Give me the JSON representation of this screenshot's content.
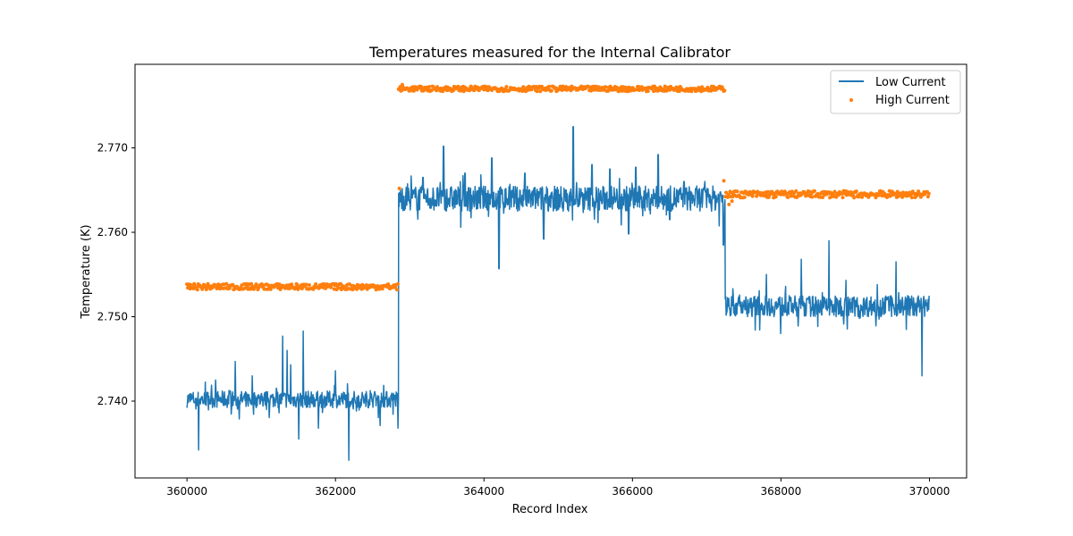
{
  "chart_data": {
    "type": "line",
    "title": "Temperatures measured for the Internal Calibrator",
    "xlabel": "Record Index",
    "ylabel": "Temperature (K)",
    "xlim": [
      359300,
      370500
    ],
    "ylim": [
      2.7309,
      2.7799
    ],
    "x_ticks": [
      360000,
      362000,
      364000,
      366000,
      368000,
      370000
    ],
    "x_tick_labels": [
      "360000",
      "362000",
      "364000",
      "366000",
      "368000",
      "370000"
    ],
    "y_ticks": [
      2.74,
      2.75,
      2.76,
      2.77
    ],
    "y_tick_labels": [
      "2.740",
      "2.750",
      "2.760",
      "2.770"
    ],
    "legend_position": "top-right",
    "grid": false,
    "series": [
      {
        "name": "Low Current",
        "style": "line",
        "color": "#1f77b4",
        "segments": [
          {
            "x_start": 360000,
            "x_end": 362850,
            "level": 2.7405,
            "band": [
              2.7392,
              2.7412
            ]
          },
          {
            "x_start": 362850,
            "x_end": 367250,
            "level": 2.7643,
            "band": [
              2.7625,
              2.7655
            ]
          },
          {
            "x_start": 367250,
            "x_end": 370000,
            "level": 2.7515,
            "band": [
              2.75,
              2.7525
            ]
          }
        ],
        "spikes": [
          [
            360160,
            2.7342
          ],
          [
            360380,
            2.7425
          ],
          [
            360650,
            2.7447
          ],
          [
            360880,
            2.743
          ],
          [
            361290,
            2.7477
          ],
          [
            361350,
            2.746
          ],
          [
            361400,
            2.7443
          ],
          [
            361570,
            2.7483
          ],
          [
            361500,
            2.7355
          ],
          [
            361770,
            2.7368
          ],
          [
            362000,
            2.7436
          ],
          [
            362180,
            2.733
          ],
          [
            362600,
            2.7371
          ],
          [
            362840,
            2.7368
          ],
          [
            363180,
            2.7665
          ],
          [
            363450,
            2.7702
          ],
          [
            363740,
            2.767
          ],
          [
            364100,
            2.7688
          ],
          [
            364200,
            2.7557
          ],
          [
            364550,
            2.767
          ],
          [
            364800,
            2.7592
          ],
          [
            365100,
            2.765
          ],
          [
            365200,
            2.7725
          ],
          [
            365450,
            2.768
          ],
          [
            365700,
            2.7675
          ],
          [
            365950,
            2.7598
          ],
          [
            366050,
            2.7677
          ],
          [
            366350,
            2.7692
          ],
          [
            366500,
            2.7615
          ],
          [
            366700,
            2.766
          ],
          [
            367220,
            2.7585
          ],
          [
            367600,
            2.7522
          ],
          [
            367800,
            2.755
          ],
          [
            368000,
            2.748
          ],
          [
            368270,
            2.7568
          ],
          [
            368500,
            2.752
          ],
          [
            368640,
            2.759
          ],
          [
            368740,
            2.75
          ],
          [
            368880,
            2.7543
          ],
          [
            369050,
            2.7498
          ],
          [
            369300,
            2.7538
          ],
          [
            369550,
            2.7565
          ],
          [
            369700,
            2.7525
          ],
          [
            369900,
            2.743
          ]
        ]
      },
      {
        "name": "High Current",
        "style": "scatter",
        "color": "#ff7f0e",
        "segments": [
          {
            "x_start": 360000,
            "x_end": 362850,
            "level": 2.7536,
            "band": [
              2.7532,
              2.7539
            ]
          },
          {
            "x_start": 362850,
            "x_end": 367250,
            "level": 2.777,
            "band": [
              2.7767,
              2.7773
            ]
          },
          {
            "x_start": 367250,
            "x_end": 370000,
            "level": 2.7646,
            "band": [
              2.7641,
              2.7649
            ]
          }
        ],
        "outliers": [
          [
            362860,
            2.7652
          ],
          [
            367230,
            2.7661
          ],
          [
            367300,
            2.7633
          ],
          [
            367340,
            2.7637
          ],
          [
            367900,
            2.7641
          ],
          [
            362900,
            2.7775
          ]
        ]
      }
    ]
  }
}
